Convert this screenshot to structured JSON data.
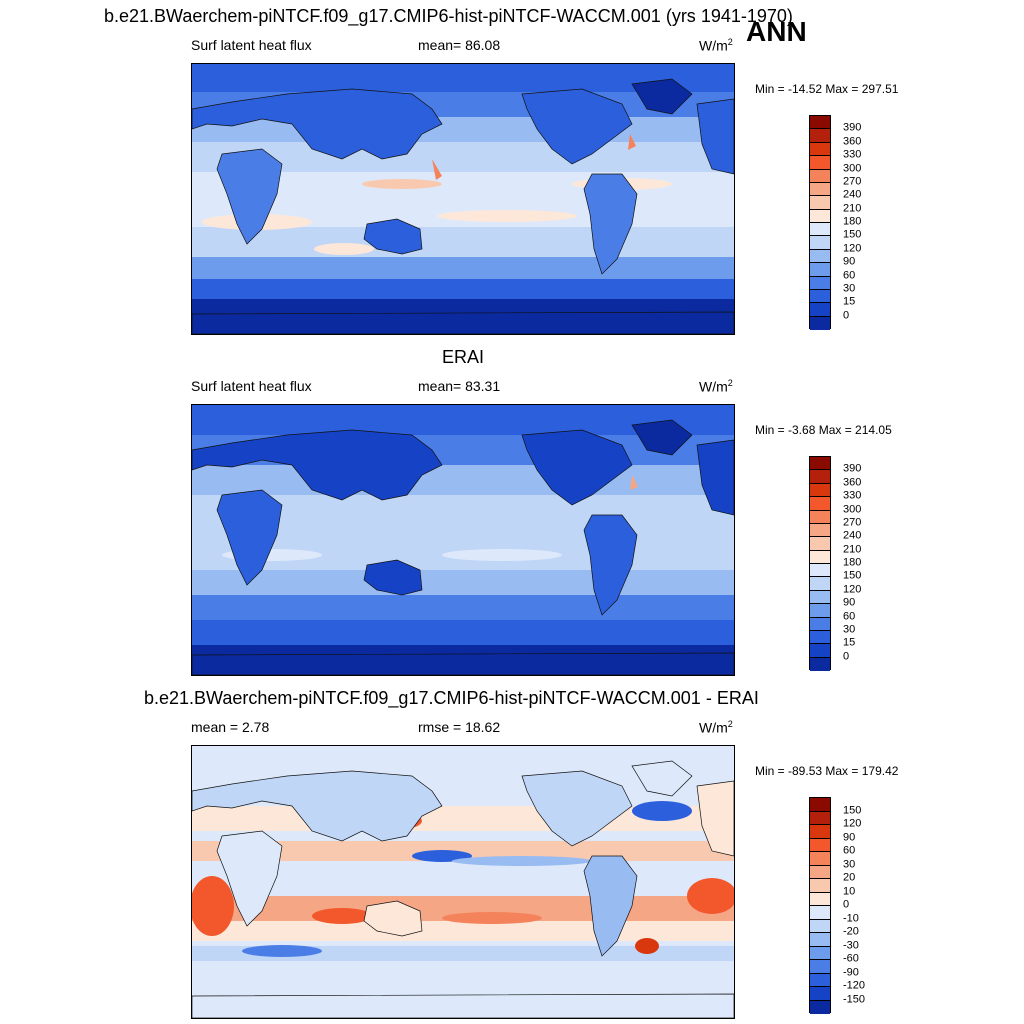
{
  "header": {
    "case_title": "b.e21.BWaerchem-piNTCF.f09_g17.CMIP6-hist-piNTCF-WACCM.001 (yrs 1941-1970)",
    "season": "ANN"
  },
  "panels": [
    {
      "id": "model",
      "variable": "Surf latent heat flux",
      "stat": "mean=  86.08",
      "units": "W/m",
      "units_sup": "2",
      "minmax": "Min = -14.52 Max = 297.51",
      "colorbar": {
        "levels": [
          "390",
          "360",
          "330",
          "300",
          "270",
          "240",
          "210",
          "180",
          "150",
          "120",
          "90",
          "60",
          "30",
          "15",
          "0"
        ],
        "colors": [
          "#8b0a00",
          "#b3200c",
          "#d9380f",
          "#f2582b",
          "#f4835b",
          "#f5a684",
          "#f8c9af",
          "#fce7d9",
          "#dde9fb",
          "#c0d6f7",
          "#98bbf2",
          "#6e9cec",
          "#4a7de6",
          "#2c5fdc",
          "#1643c6",
          "#0b2aa0"
        ]
      }
    },
    {
      "id": "obs",
      "title": "ERAI",
      "variable": "Surf latent heat flux",
      "stat": "mean=  83.31",
      "units": "W/m",
      "units_sup": "2",
      "minmax": "Min =  -3.68 Max = 214.05",
      "colorbar": {
        "levels": [
          "390",
          "360",
          "330",
          "300",
          "270",
          "240",
          "210",
          "180",
          "150",
          "120",
          "90",
          "60",
          "30",
          "15",
          "0"
        ],
        "colors": [
          "#8b0a00",
          "#b3200c",
          "#d9380f",
          "#f2582b",
          "#f4835b",
          "#f5a684",
          "#f8c9af",
          "#fce7d9",
          "#dde9fb",
          "#c0d6f7",
          "#98bbf2",
          "#6e9cec",
          "#4a7de6",
          "#2c5fdc",
          "#1643c6",
          "#0b2aa0"
        ]
      }
    },
    {
      "id": "diff",
      "title": "b.e21.BWaerchem-piNTCF.f09_g17.CMIP6-hist-piNTCF-WACCM.001 - ERAI",
      "variable": "mean =   2.78",
      "stat": "rmse =  18.62",
      "units": "W/m",
      "units_sup": "2",
      "minmax": "Min = -89.53 Max = 179.42",
      "colorbar": {
        "levels": [
          "150",
          "120",
          "90",
          "60",
          "30",
          "20",
          "10",
          "0",
          "-10",
          "-20",
          "-30",
          "-60",
          "-90",
          "-120",
          "-150"
        ],
        "colors": [
          "#8b0a00",
          "#b3200c",
          "#d9380f",
          "#f2582b",
          "#f4835b",
          "#f5a684",
          "#f8c9af",
          "#fce7d9",
          "#dde9fb",
          "#c0d6f7",
          "#98bbf2",
          "#6e9cec",
          "#4a7de6",
          "#2c5fdc",
          "#1643c6",
          "#0b2aa0"
        ]
      }
    }
  ]
}
